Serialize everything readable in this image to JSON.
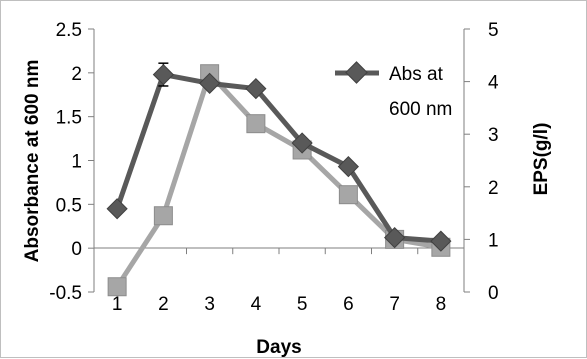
{
  "chart_data": {
    "type": "line",
    "title": "",
    "xlabel": "Days",
    "ylabel_left": "Absorbance at 600 nm",
    "ylabel_right": "EPS(g/l)",
    "x": [
      1,
      2,
      3,
      4,
      5,
      6,
      7,
      8
    ],
    "x_tick_labels": [
      "1",
      "2",
      "3",
      "4",
      "5",
      "6",
      "7",
      "8"
    ],
    "y_left_ticks": [
      "2.5",
      "2",
      "1.5",
      "1",
      "0.5",
      "0",
      "-0.5"
    ],
    "y_right_ticks": [
      "5",
      "4",
      "3",
      "2",
      "1",
      "0"
    ],
    "ylim_left": [
      -0.5,
      2.5
    ],
    "ylim_right": [
      0,
      5
    ],
    "series": [
      {
        "name": "Abs at 600 nm",
        "axis": "left",
        "marker": "diamond",
        "color": "#595959",
        "values": [
          0.45,
          1.98,
          1.88,
          1.82,
          1.2,
          0.93,
          0.12,
          0.08
        ],
        "error": [
          null,
          0.13,
          null,
          null,
          null,
          null,
          null,
          null
        ]
      },
      {
        "name": "",
        "axis": "right",
        "marker": "square",
        "color": "#a6a6a6",
        "values": [
          0.1,
          1.45,
          4.15,
          3.2,
          2.7,
          1.85,
          1.0,
          0.85
        ]
      }
    ],
    "legend": {
      "position": "top-right",
      "line1": "Abs at",
      "line2": "600 nm"
    },
    "zero_line": true,
    "grid": false
  }
}
